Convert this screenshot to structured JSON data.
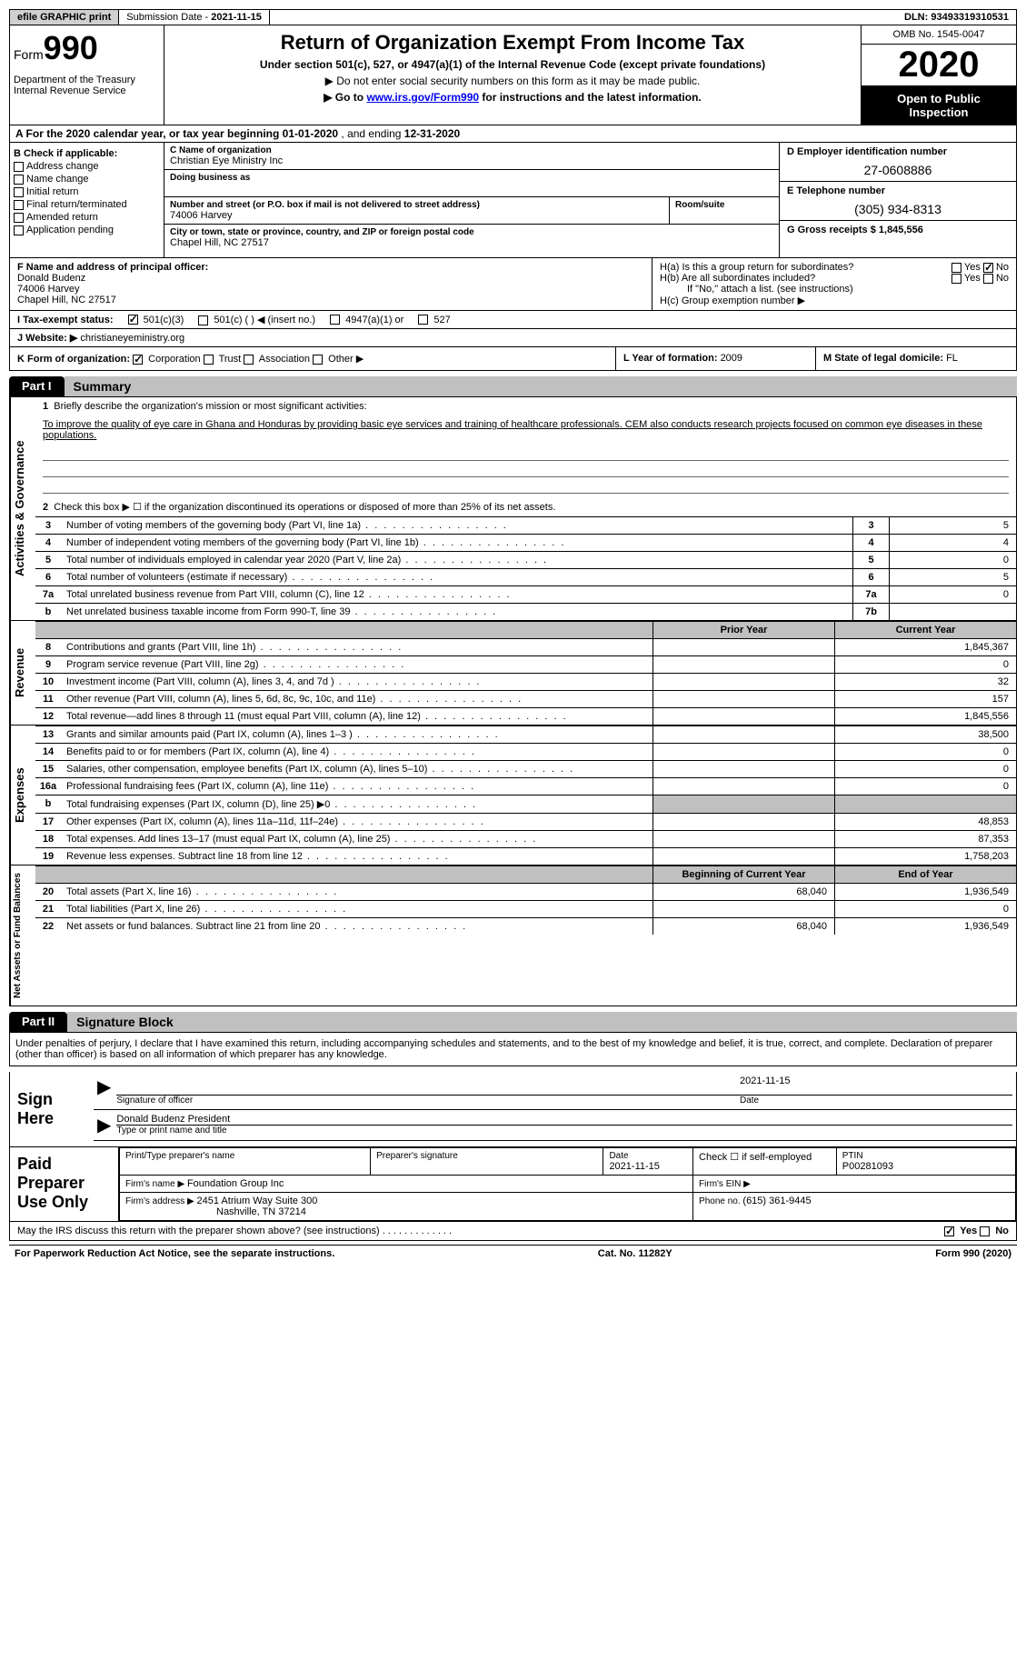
{
  "topbar": {
    "efile": "efile GRAPHIC print",
    "sub_date_label": "Submission Date - ",
    "sub_date": "2021-11-15",
    "dln_label": "DLN: ",
    "dln": "93493319310531"
  },
  "header": {
    "form_prefix": "Form",
    "form_num": "990",
    "dept": "Department of the Treasury\nInternal Revenue Service",
    "title": "Return of Organization Exempt From Income Tax",
    "sub1": "Under section 501(c), 527, or 4947(a)(1) of the Internal Revenue Code (except private foundations)",
    "sub2": "▶ Do not enter social security numbers on this form as it may be made public.",
    "sub3_pre": "▶ Go to ",
    "sub3_link": "www.irs.gov/Form990",
    "sub3_post": " for instructions and the latest information.",
    "omb": "OMB No. 1545-0047",
    "year": "2020",
    "open": "Open to Public Inspection"
  },
  "lineA": {
    "text_pre": "A For the 2020 calendar year, or tax year beginning ",
    "begin": "01-01-2020",
    "mid": " , and ending ",
    "end": "12-31-2020"
  },
  "colB": {
    "label": "B Check if applicable:",
    "items": [
      "Address change",
      "Name change",
      "Initial return",
      "Final return/terminated",
      "Amended return",
      "Application pending"
    ]
  },
  "colC": {
    "name_label": "C Name of organization",
    "name": "Christian Eye Ministry Inc",
    "dba_label": "Doing business as",
    "dba": "",
    "addr_label": "Number and street (or P.O. box if mail is not delivered to street address)",
    "room_label": "Room/suite",
    "addr": "74006 Harvey",
    "city_label": "City or town, state or province, country, and ZIP or foreign postal code",
    "city": "Chapel Hill, NC  27517"
  },
  "colD": {
    "ein_label": "D Employer identification number",
    "ein": "27-0608886",
    "tel_label": "E Telephone number",
    "tel": "(305) 934-8313",
    "gross_label": "G Gross receipts $ ",
    "gross": "1,845,556"
  },
  "rowF": {
    "label": "F  Name and address of principal officer:",
    "name": "Donald Budenz",
    "addr1": "74006 Harvey",
    "addr2": "Chapel Hill, NC  27517"
  },
  "rowH": {
    "ha": "H(a)  Is this a group return for subordinates?",
    "hb": "H(b)  Are all subordinates included?",
    "hnote": "If \"No,\" attach a list. (see instructions)",
    "hc": "H(c)  Group exemption number ▶",
    "yes": "Yes",
    "no": "No"
  },
  "rowI": {
    "label": "I  Tax-exempt status:",
    "o1": "501(c)(3)",
    "o2": "501(c) (  ) ◀ (insert no.)",
    "o3": "4947(a)(1) or",
    "o4": "527"
  },
  "rowJ": {
    "label": "J  Website: ▶  ",
    "val": "christianeyeministry.org"
  },
  "rowK": {
    "label": "K Form of organization:",
    "o1": "Corporation",
    "o2": "Trust",
    "o3": "Association",
    "o4": "Other ▶",
    "l_label": "L Year of formation: ",
    "l_val": "2009",
    "m_label": "M State of legal domicile: ",
    "m_val": "FL"
  },
  "part1": {
    "tab": "Part I",
    "title": "Summary",
    "side1": "Activities & Governance",
    "side2": "Revenue",
    "side3": "Expenses",
    "side4": "Net Assets or Fund Balances",
    "q1": "Briefly describe the organization's mission or most significant activities:",
    "mission": "To improve the quality of eye care in Ghana and Honduras by providing basic eye services and training of healthcare professionals. CEM also conducts research projects focused on common eye diseases in these populations.",
    "q2": "Check this box ▶ ☐  if the organization discontinued its operations or disposed of more than 25% of its net assets.",
    "rows_gov": [
      {
        "n": "3",
        "t": "Number of voting members of the governing body (Part VI, line 1a)",
        "b": "3",
        "v": "5"
      },
      {
        "n": "4",
        "t": "Number of independent voting members of the governing body (Part VI, line 1b)",
        "b": "4",
        "v": "4"
      },
      {
        "n": "5",
        "t": "Total number of individuals employed in calendar year 2020 (Part V, line 2a)",
        "b": "5",
        "v": "0"
      },
      {
        "n": "6",
        "t": "Total number of volunteers (estimate if necessary)",
        "b": "6",
        "v": "5"
      },
      {
        "n": "7a",
        "t": "Total unrelated business revenue from Part VIII, column (C), line 12",
        "b": "7a",
        "v": "0"
      },
      {
        "n": "b",
        "t": "Net unrelated business taxable income from Form 990-T, line 39",
        "b": "7b",
        "v": ""
      }
    ],
    "hdr_prior": "Prior Year",
    "hdr_curr": "Current Year",
    "rows_rev": [
      {
        "n": "8",
        "t": "Contributions and grants (Part VIII, line 1h)",
        "p": "",
        "c": "1,845,367"
      },
      {
        "n": "9",
        "t": "Program service revenue (Part VIII, line 2g)",
        "p": "",
        "c": "0"
      },
      {
        "n": "10",
        "t": "Investment income (Part VIII, column (A), lines 3, 4, and 7d )",
        "p": "",
        "c": "32"
      },
      {
        "n": "11",
        "t": "Other revenue (Part VIII, column (A), lines 5, 6d, 8c, 9c, 10c, and 11e)",
        "p": "",
        "c": "157"
      },
      {
        "n": "12",
        "t": "Total revenue—add lines 8 through 11 (must equal Part VIII, column (A), line 12)",
        "p": "",
        "c": "1,845,556"
      }
    ],
    "rows_exp": [
      {
        "n": "13",
        "t": "Grants and similar amounts paid (Part IX, column (A), lines 1–3 )",
        "p": "",
        "c": "38,500"
      },
      {
        "n": "14",
        "t": "Benefits paid to or for members (Part IX, column (A), line 4)",
        "p": "",
        "c": "0"
      },
      {
        "n": "15",
        "t": "Salaries, other compensation, employee benefits (Part IX, column (A), lines 5–10)",
        "p": "",
        "c": "0"
      },
      {
        "n": "16a",
        "t": "Professional fundraising fees (Part IX, column (A), line 11e)",
        "p": "",
        "c": "0"
      },
      {
        "n": "b",
        "t": "Total fundraising expenses (Part IX, column (D), line 25) ▶0",
        "p": "gray",
        "c": "gray"
      },
      {
        "n": "17",
        "t": "Other expenses (Part IX, column (A), lines 11a–11d, 11f–24e)",
        "p": "",
        "c": "48,853"
      },
      {
        "n": "18",
        "t": "Total expenses. Add lines 13–17 (must equal Part IX, column (A), line 25)",
        "p": "",
        "c": "87,353"
      },
      {
        "n": "19",
        "t": "Revenue less expenses. Subtract line 18 from line 12",
        "p": "",
        "c": "1,758,203"
      }
    ],
    "hdr_begin": "Beginning of Current Year",
    "hdr_end": "End of Year",
    "rows_net": [
      {
        "n": "20",
        "t": "Total assets (Part X, line 16)",
        "p": "68,040",
        "c": "1,936,549"
      },
      {
        "n": "21",
        "t": "Total liabilities (Part X, line 26)",
        "p": "",
        "c": "0"
      },
      {
        "n": "22",
        "t": "Net assets or fund balances. Subtract line 21 from line 20",
        "p": "68,040",
        "c": "1,936,549"
      }
    ]
  },
  "part2": {
    "tab": "Part II",
    "title": "Signature Block",
    "decl": "Under penalties of perjury, I declare that I have examined this return, including accompanying schedules and statements, and to the best of my knowledge and belief, it is true, correct, and complete. Declaration of preparer (other than officer) is based on all information of which preparer has any knowledge.",
    "sign_here": "Sign Here",
    "sig_officer": "Signature of officer",
    "sig_date": "2021-11-15",
    "date_label": "Date",
    "officer_name": "Donald Budenz  President",
    "type_label": "Type or print name and title",
    "paid": "Paid Preparer Use Only",
    "prep_name_label": "Print/Type preparer's name",
    "prep_sig_label": "Preparer's signature",
    "prep_date_label": "Date",
    "prep_date": "2021-11-15",
    "check_self": "Check ☐ if self-employed",
    "ptin_label": "PTIN",
    "ptin": "P00281093",
    "firm_name_label": "Firm's name   ▶ ",
    "firm_name": "Foundation Group Inc",
    "firm_ein_label": "Firm's EIN ▶",
    "firm_addr_label": "Firm's address ▶ ",
    "firm_addr1": "2451 Atrium Way Suite 300",
    "firm_addr2": "Nashville, TN  37214",
    "firm_phone_label": "Phone no. ",
    "firm_phone": "(615) 361-9445",
    "may_irs": "May the IRS discuss this return with the preparer shown above? (see instructions)",
    "yes": "Yes",
    "no": "No"
  },
  "footer": {
    "left": "For Paperwork Reduction Act Notice, see the separate instructions.",
    "mid": "Cat. No. 11282Y",
    "right": "Form 990 (2020)"
  }
}
